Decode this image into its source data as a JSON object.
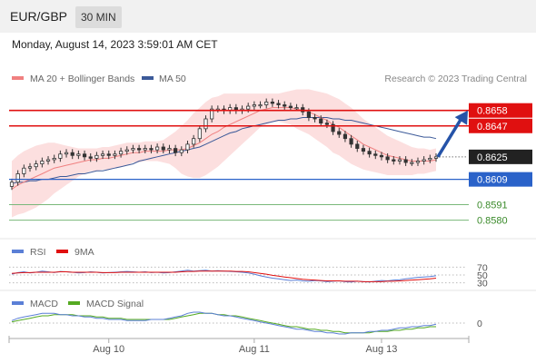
{
  "header": {
    "symbol": "EUR/GBP",
    "interval": "30 MIN",
    "datetime": "Monday, August 14, 2023 3:59:01 AM CET"
  },
  "legend": {
    "ma20": "MA 20 + Bollinger Bands",
    "ma50": "MA 50",
    "copyright": "Research © 2023 Trading Central",
    "rsi": "RSI",
    "rsi_ma": "9MA",
    "macd": "MACD",
    "macd_signal": "MACD Signal"
  },
  "colors": {
    "price_up": "#333333",
    "ma20": "#f08080",
    "bollinger": "#fbd4d4",
    "ma50": "#3c5a99",
    "resistance": "#e01010",
    "current": "#222222",
    "support": "#2a62c9",
    "target": "#3a8a2a",
    "arrow": "#2553a8",
    "rsi": "#5b7fd6",
    "rsi_ma": "#e01010",
    "macd": "#5b7fd6",
    "macd_signal": "#55aa22"
  },
  "chart_data": [
    {
      "type": "candlestick",
      "title": "",
      "x_ticks": [
        "Aug 10",
        "Aug 11",
        "Aug 13"
      ],
      "ylim": [
        0.8572,
        0.8672
      ],
      "levels": [
        {
          "value": 0.8658,
          "label": "0.8658",
          "kind": "resistance"
        },
        {
          "value": 0.8647,
          "label": "0.8647",
          "kind": "resistance"
        },
        {
          "value": 0.8625,
          "label": "0.8625",
          "kind": "current"
        },
        {
          "value": 0.8609,
          "label": "0.8609",
          "kind": "support"
        },
        {
          "value": 0.8591,
          "label": "0.8591",
          "kind": "target"
        },
        {
          "value": 0.858,
          "label": "0.8580",
          "kind": "target"
        }
      ],
      "close": [
        0.8607,
        0.8613,
        0.8617,
        0.8618,
        0.862,
        0.8622,
        0.8623,
        0.8624,
        0.8627,
        0.8628,
        0.8626,
        0.8627,
        0.8625,
        0.8624,
        0.8626,
        0.8627,
        0.8626,
        0.8627,
        0.8629,
        0.863,
        0.8631,
        0.863,
        0.8631,
        0.863,
        0.8632,
        0.863,
        0.8631,
        0.8628,
        0.863,
        0.8634,
        0.8638,
        0.8645,
        0.8652,
        0.8659,
        0.8659,
        0.8658,
        0.866,
        0.8658,
        0.8659,
        0.8661,
        0.8662,
        0.8662,
        0.8664,
        0.8663,
        0.8662,
        0.8661,
        0.866,
        0.866,
        0.8657,
        0.8653,
        0.8652,
        0.8649,
        0.8648,
        0.8643,
        0.8641,
        0.8638,
        0.8634,
        0.8631,
        0.8629,
        0.8627,
        0.8626,
        0.8625,
        0.8623,
        0.8622,
        0.8623,
        0.8621,
        0.8621,
        0.8622,
        0.8623,
        0.8624,
        0.8625
      ],
      "ma20": [
        0.8602,
        0.8605,
        0.8607,
        0.8609,
        0.8611,
        0.8613,
        0.8615,
        0.8617,
        0.8618,
        0.8619,
        0.862,
        0.8621,
        0.8622,
        0.8623,
        0.8623,
        0.8624,
        0.8624,
        0.8625,
        0.8626,
        0.8627,
        0.8628,
        0.8628,
        0.8629,
        0.8629,
        0.8629,
        0.8629,
        0.863,
        0.863,
        0.863,
        0.8631,
        0.8633,
        0.8635,
        0.8638,
        0.8641,
        0.8643,
        0.8646,
        0.8648,
        0.865,
        0.8652,
        0.8654,
        0.8656,
        0.8658,
        0.8659,
        0.866,
        0.866,
        0.866,
        0.866,
        0.8659,
        0.8658,
        0.8657,
        0.8655,
        0.8653,
        0.8651,
        0.8648,
        0.8646,
        0.8643,
        0.864,
        0.8637,
        0.8634,
        0.8632,
        0.863,
        0.8628,
        0.8626,
        0.8625,
        0.8624,
        0.8623,
        0.8622,
        0.8622,
        0.8622,
        0.8622,
        0.8623
      ],
      "ma50": [
        0.8606,
        0.8607,
        0.8607,
        0.8608,
        0.8608,
        0.8609,
        0.8609,
        0.861,
        0.8611,
        0.8611,
        0.8612,
        0.8613,
        0.8613,
        0.8614,
        0.8615,
        0.8615,
        0.8616,
        0.8617,
        0.8618,
        0.8619,
        0.862,
        0.8622,
        0.8623,
        0.8624,
        0.8625,
        0.8626,
        0.8627,
        0.8628,
        0.8629,
        0.863,
        0.8631,
        0.8632,
        0.8634,
        0.8636,
        0.8638,
        0.864,
        0.8642,
        0.8643,
        0.8645,
        0.8646,
        0.8647,
        0.8648,
        0.8649,
        0.865,
        0.8651,
        0.8651,
        0.8652,
        0.8652,
        0.8653,
        0.8653,
        0.8653,
        0.8653,
        0.8653,
        0.8652,
        0.8652,
        0.8651,
        0.8651,
        0.865,
        0.8649,
        0.8648,
        0.8647,
        0.8646,
        0.8645,
        0.8644,
        0.8643,
        0.8642,
        0.8641,
        0.864,
        0.8639,
        0.8639,
        0.8638
      ],
      "bb_width": [
        0.002,
        0.0021,
        0.0022,
        0.0022,
        0.0022,
        0.0021,
        0.002,
        0.0018,
        0.0016,
        0.0014,
        0.0012,
        0.001,
        0.0009,
        0.0008,
        0.0008,
        0.0008,
        0.0008,
        0.0008,
        0.0008,
        0.0008,
        0.0007,
        0.0007,
        0.0007,
        0.0007,
        0.0007,
        0.0008,
        0.001,
        0.0013,
        0.0017,
        0.002,
        0.0023,
        0.0025,
        0.0026,
        0.0026,
        0.0025,
        0.0024,
        0.0022,
        0.002,
        0.0018,
        0.0016,
        0.0014,
        0.0012,
        0.0011,
        0.001,
        0.001,
        0.0011,
        0.0012,
        0.0014,
        0.0015,
        0.0016,
        0.0017,
        0.0018,
        0.0019,
        0.002,
        0.002,
        0.002,
        0.002,
        0.0019,
        0.0018,
        0.0017,
        0.0016,
        0.0015,
        0.0014,
        0.0013,
        0.0012,
        0.0011,
        0.001,
        0.0009,
        0.0009,
        0.0008,
        0.0008
      ],
      "forecast_target": 0.8658
    },
    {
      "type": "line",
      "title": "RSI",
      "y_ticks": [
        70,
        50,
        30
      ],
      "ylim": [
        20,
        80
      ],
      "series": [
        {
          "name": "RSI",
          "values": [
            52,
            56,
            58,
            55,
            57,
            60,
            58,
            56,
            59,
            58,
            57,
            55,
            56,
            58,
            57,
            55,
            56,
            57,
            58,
            59,
            58,
            57,
            58,
            56,
            57,
            55,
            56,
            58,
            60,
            62,
            60,
            61,
            62,
            60,
            61,
            60,
            59,
            58,
            57,
            55,
            52,
            48,
            45,
            42,
            40,
            38,
            36,
            37,
            35,
            34,
            36,
            35,
            33,
            34,
            35,
            33,
            32,
            34,
            33,
            32,
            34,
            36,
            35,
            37,
            38,
            40,
            42,
            44,
            45,
            46,
            48
          ]
        },
        {
          "name": "9MA",
          "values": [
            54,
            55,
            56,
            56,
            57,
            57,
            57,
            57,
            58,
            58,
            57,
            57,
            57,
            57,
            57,
            56,
            56,
            56,
            57,
            57,
            57,
            57,
            57,
            57,
            57,
            57,
            57,
            57,
            58,
            59,
            59,
            60,
            60,
            60,
            60,
            60,
            60,
            59,
            59,
            58,
            56,
            54,
            52,
            49,
            47,
            45,
            43,
            41,
            39,
            38,
            37,
            36,
            35,
            35,
            35,
            34,
            34,
            34,
            33,
            33,
            33,
            33,
            34,
            34,
            35,
            36,
            37,
            38,
            39,
            40,
            42
          ]
        }
      ]
    },
    {
      "type": "line",
      "title": "MACD",
      "y_ticks": [
        0
      ],
      "ylim": [
        -0.0012,
        0.0012
      ],
      "series": [
        {
          "name": "MACD",
          "values": [
            0.0002,
            0.0004,
            0.0005,
            0.0006,
            0.0007,
            0.0008,
            0.0008,
            0.0008,
            0.0007,
            0.0007,
            0.0006,
            0.0006,
            0.0005,
            0.0005,
            0.0004,
            0.0004,
            0.0003,
            0.0003,
            0.0003,
            0.0002,
            0.0002,
            0.0002,
            0.0002,
            0.0003,
            0.0003,
            0.0003,
            0.0004,
            0.0005,
            0.0006,
            0.0008,
            0.0009,
            0.0009,
            0.0008,
            0.0008,
            0.0007,
            0.0006,
            0.0006,
            0.0005,
            0.0004,
            0.0003,
            0.0002,
            0.0001,
            0.0,
            -0.0001,
            -0.0002,
            -0.0003,
            -0.0004,
            -0.0005,
            -0.0005,
            -0.0006,
            -0.0007,
            -0.0007,
            -0.0008,
            -0.0008,
            -0.0009,
            -0.0009,
            -0.0008,
            -0.0008,
            -0.0008,
            -0.0007,
            -0.0007,
            -0.0006,
            -0.0006,
            -0.0005,
            -0.0004,
            -0.0004,
            -0.0003,
            -0.0003,
            -0.0002,
            -0.0002,
            -0.0001
          ]
        },
        {
          "name": "MACD Signal",
          "values": [
            0.0001,
            0.0002,
            0.0003,
            0.0004,
            0.0005,
            0.0006,
            0.0006,
            0.0007,
            0.0007,
            0.0007,
            0.0007,
            0.0006,
            0.0006,
            0.0006,
            0.0005,
            0.0005,
            0.0004,
            0.0004,
            0.0004,
            0.0003,
            0.0003,
            0.0003,
            0.0003,
            0.0003,
            0.0003,
            0.0003,
            0.0003,
            0.0004,
            0.0005,
            0.0006,
            0.0007,
            0.0008,
            0.0008,
            0.0008,
            0.0007,
            0.0007,
            0.0006,
            0.0006,
            0.0005,
            0.0004,
            0.0003,
            0.0002,
            0.0001,
            0.0,
            -0.0001,
            -0.0002,
            -0.0003,
            -0.0003,
            -0.0004,
            -0.0005,
            -0.0005,
            -0.0006,
            -0.0006,
            -0.0007,
            -0.0007,
            -0.0008,
            -0.0008,
            -0.0008,
            -0.0008,
            -0.0008,
            -0.0007,
            -0.0007,
            -0.0007,
            -0.0006,
            -0.0006,
            -0.0005,
            -0.0005,
            -0.0004,
            -0.0004,
            -0.0003,
            -0.0003
          ]
        }
      ]
    }
  ]
}
